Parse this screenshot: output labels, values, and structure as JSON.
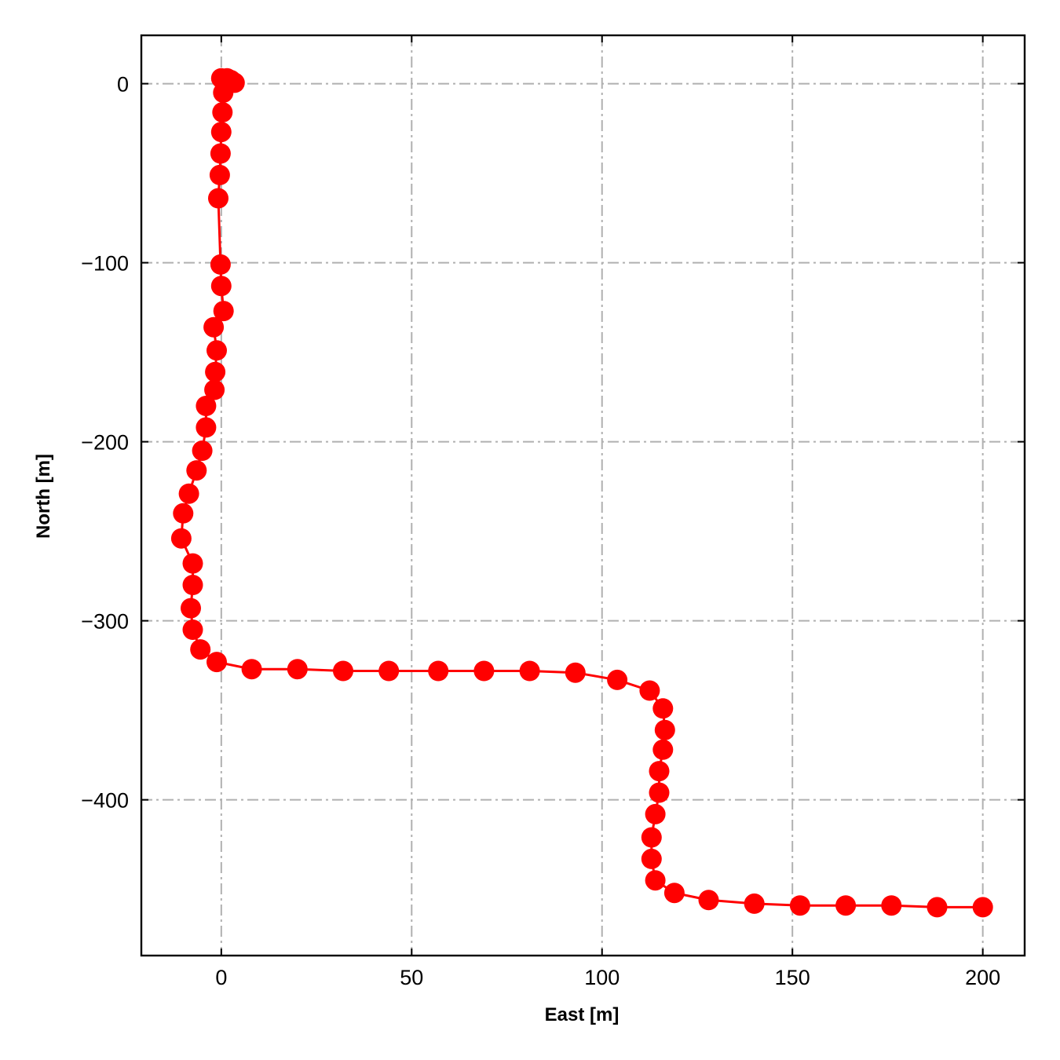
{
  "chart_data": {
    "type": "line",
    "title": "",
    "xlabel": "East [m]",
    "ylabel": "North [m]",
    "xlim": [
      -21,
      211
    ],
    "ylim": [
      -487,
      27
    ],
    "xticks": [
      0,
      50,
      100,
      150,
      200
    ],
    "yticks": [
      0,
      -100,
      -200,
      -300,
      -400
    ],
    "xtick_labels": [
      "0",
      "50",
      "100",
      "150",
      "200"
    ],
    "ytick_labels": [
      "0",
      "−100",
      "−200",
      "−300",
      "−400"
    ],
    "grid": true,
    "grid_style": "dash-dot",
    "legend": null,
    "series": [
      {
        "color": "#ff0000",
        "marker": "circle",
        "points": [
          [
            0.0,
            3.0
          ],
          [
            1.5,
            3.0
          ],
          [
            2.5,
            2.0
          ],
          [
            3.5,
            0.5
          ],
          [
            0.5,
            -5.0
          ],
          [
            0.3,
            -16.0
          ],
          [
            0.0,
            -27.0
          ],
          [
            -0.2,
            -39.0
          ],
          [
            -0.4,
            -51.0
          ],
          [
            -0.8,
            -64.0
          ],
          [
            -0.2,
            -101.0
          ],
          [
            0.0,
            -113.0
          ],
          [
            0.6,
            -127.0
          ],
          [
            -2.0,
            -136.0
          ],
          [
            -1.2,
            -149.0
          ],
          [
            -1.6,
            -161.0
          ],
          [
            -1.8,
            -171.0
          ],
          [
            -4.0,
            -180.0
          ],
          [
            -4.0,
            -192.0
          ],
          [
            -5.0,
            -205.0
          ],
          [
            -6.5,
            -216.0
          ],
          [
            -8.5,
            -229.0
          ],
          [
            -10.0,
            -240.0
          ],
          [
            -10.5,
            -254.0
          ],
          [
            -7.5,
            -268.0
          ],
          [
            -7.5,
            -280.0
          ],
          [
            -8.0,
            -293.0
          ],
          [
            -7.5,
            -305.0
          ],
          [
            -5.5,
            -316.0
          ],
          [
            -1.2,
            -323.0
          ],
          [
            8.0,
            -327.0
          ],
          [
            20.0,
            -327.0
          ],
          [
            32.0,
            -328.0
          ],
          [
            44.0,
            -328.0
          ],
          [
            57.0,
            -328.0
          ],
          [
            69.0,
            -328.0
          ],
          [
            81.0,
            -328.0
          ],
          [
            93.0,
            -329.0
          ],
          [
            104.0,
            -333.0
          ],
          [
            112.5,
            -339.0
          ],
          [
            116.0,
            -349.0
          ],
          [
            116.5,
            -361.0
          ],
          [
            116.0,
            -372.0
          ],
          [
            115.0,
            -384.0
          ],
          [
            115.0,
            -396.0
          ],
          [
            114.0,
            -408.0
          ],
          [
            113.0,
            -421.0
          ],
          [
            113.0,
            -433.0
          ],
          [
            114.0,
            -445.0
          ],
          [
            119.0,
            -452.0
          ],
          [
            128.0,
            -456.0
          ],
          [
            140.0,
            -458.0
          ],
          [
            152.0,
            -459.0
          ],
          [
            164.0,
            -459.0
          ],
          [
            176.0,
            -459.0
          ],
          [
            188.0,
            -460.0
          ],
          [
            200.0,
            -460.0
          ]
        ]
      }
    ]
  }
}
